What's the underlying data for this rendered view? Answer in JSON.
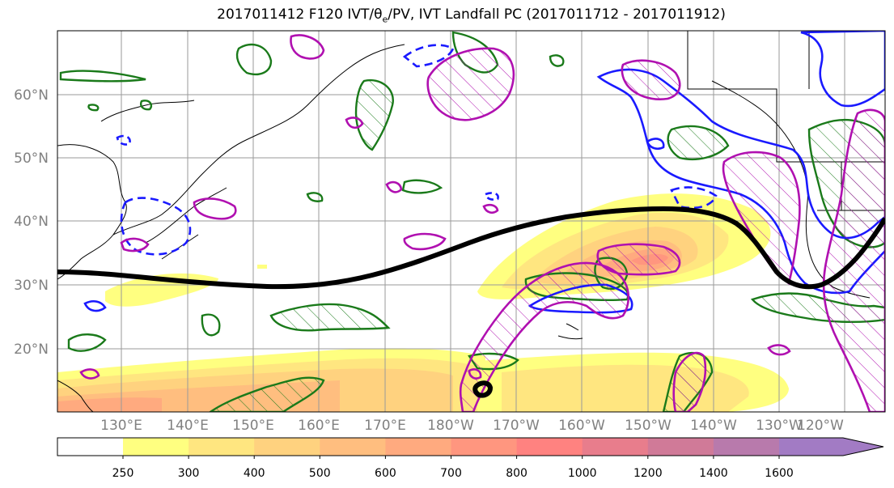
{
  "title": "2017011412 F120 IVT/θe/PV, IVT Landfall PC (2017011712 - 2017011912)",
  "lat_labels": [
    "60°N",
    "50°N",
    "40°N",
    "30°N",
    "20°N"
  ],
  "lon_labels": [
    "130°E",
    "140°E",
    "150°E",
    "160°E",
    "170°E",
    "180°W",
    "170°W",
    "160°W",
    "150°W",
    "140°W",
    "130°W",
    "120°W"
  ],
  "colorbar": {
    "levels": [
      "250",
      "300",
      "400",
      "500",
      "600",
      "700",
      "800",
      "1000",
      "1200",
      "1400",
      "1600"
    ],
    "colors": [
      "#ffff80",
      "#ffe680",
      "#ffd27f",
      "#ffbe7f",
      "#ffaa7f",
      "#ff967f",
      "#ff8280",
      "#e87d8c",
      "#d07a98",
      "#b87aac",
      "#a27bc4"
    ]
  },
  "contour_colors": {
    "ivt_fill_low": "#ffff80",
    "ivt_fill_high": "#ff8280",
    "theta_e": "#1a7a1a",
    "pv_dashed": "#1a1aff",
    "pv_solid": "#1a1aff",
    "magenta": "#b010b0",
    "landfall_pc": "#000000"
  }
}
